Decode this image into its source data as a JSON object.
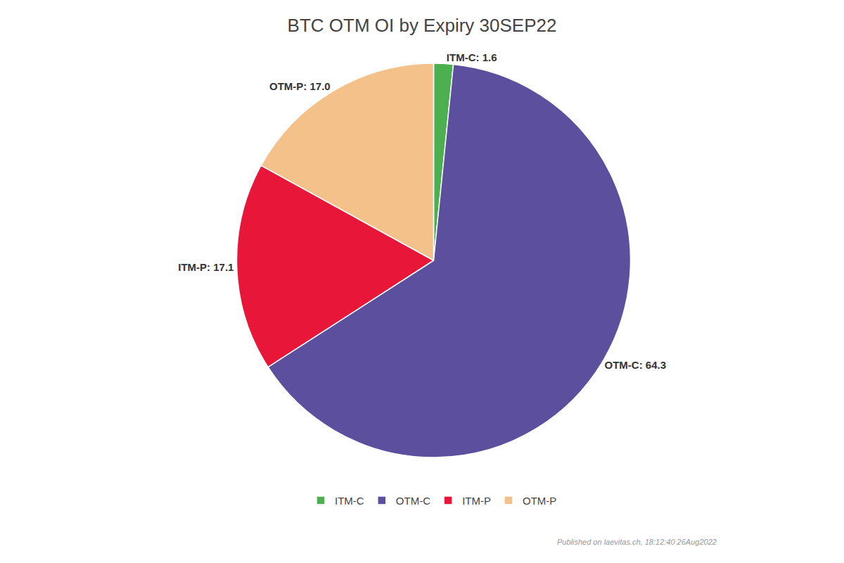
{
  "chart_data": {
    "type": "pie",
    "title": "BTC OTM OI by Expiry 30SEP22",
    "categories": [
      "ITM-C",
      "OTM-C",
      "ITM-P",
      "OTM-P"
    ],
    "values": [
      1.6,
      64.3,
      17.1,
      17.0
    ],
    "value_labels": [
      "ITM-C: 1.6",
      "OTM-C: 64.3",
      "ITM-P: 17.1",
      "OTM-P: 17.0"
    ],
    "colors": [
      "#4caf50",
      "#5c4f9e",
      "#e8173a",
      "#f5c18a"
    ],
    "data_labels": true,
    "legend": "bottom",
    "annotations": [
      "Published on laevitas.ch, 18:12:40 26Aug2022"
    ]
  }
}
